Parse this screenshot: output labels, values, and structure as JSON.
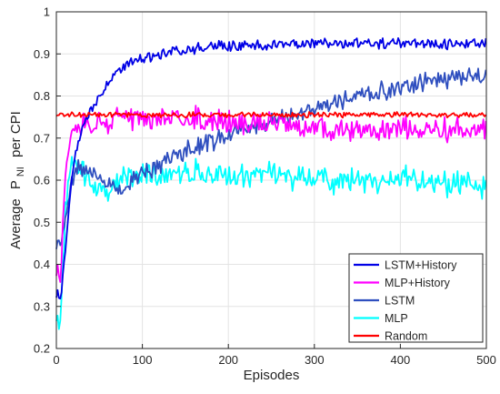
{
  "chart_data": {
    "type": "line",
    "title": "",
    "xlabel": "Episodes",
    "ylabel": {
      "prefix": "Average",
      "main": "P",
      "sub": "NI",
      "suffix": "per CPI"
    },
    "xlim": [
      0,
      500
    ],
    "ylim": [
      0.2,
      1.0
    ],
    "xticks": [
      0,
      100,
      200,
      300,
      400,
      500
    ],
    "yticks": [
      0.2,
      0.3,
      0.4,
      0.5,
      0.6,
      0.7,
      0.8,
      0.9,
      1
    ],
    "grid": true,
    "legend_position": "bottom-right",
    "x": [
      0,
      5,
      10,
      15,
      20,
      25,
      30,
      40,
      50,
      60,
      70,
      80,
      90,
      100,
      125,
      150,
      175,
      200,
      250,
      300,
      350,
      400,
      450,
      500
    ],
    "series": [
      {
        "name": "LSTM+History",
        "color": "#0000e6",
        "values": [
          0.33,
          0.32,
          0.42,
          0.55,
          0.64,
          0.69,
          0.72,
          0.77,
          0.8,
          0.83,
          0.85,
          0.87,
          0.88,
          0.89,
          0.9,
          0.91,
          0.915,
          0.92,
          0.92,
          0.925,
          0.925,
          0.925,
          0.925,
          0.925
        ]
      },
      {
        "name": "MLP+History",
        "color": "#ff00ff",
        "values": [
          0.38,
          0.38,
          0.6,
          0.7,
          0.72,
          0.72,
          0.73,
          0.735,
          0.74,
          0.74,
          0.745,
          0.745,
          0.745,
          0.745,
          0.745,
          0.745,
          0.745,
          0.74,
          0.73,
          0.72,
          0.72,
          0.72,
          0.72,
          0.72
        ]
      },
      {
        "name": "LSTM",
        "color": "#2f4fbf",
        "values": [
          0.45,
          0.44,
          0.5,
          0.58,
          0.61,
          0.63,
          0.63,
          0.62,
          0.61,
          0.59,
          0.57,
          0.58,
          0.6,
          0.62,
          0.64,
          0.67,
          0.69,
          0.71,
          0.74,
          0.77,
          0.8,
          0.82,
          0.84,
          0.85
        ]
      },
      {
        "name": "MLP",
        "color": "#00ffff",
        "values": [
          0.27,
          0.28,
          0.5,
          0.62,
          0.64,
          0.63,
          0.62,
          0.6,
          0.58,
          0.58,
          0.59,
          0.6,
          0.61,
          0.61,
          0.61,
          0.615,
          0.615,
          0.61,
          0.61,
          0.6,
          0.6,
          0.6,
          0.59,
          0.59
        ]
      },
      {
        "name": "Random",
        "color": "#ff0000",
        "values": [
          0.755,
          0.755,
          0.755,
          0.755,
          0.755,
          0.755,
          0.755,
          0.755,
          0.755,
          0.755,
          0.755,
          0.755,
          0.755,
          0.755,
          0.755,
          0.755,
          0.755,
          0.755,
          0.755,
          0.755,
          0.755,
          0.755,
          0.755,
          0.755
        ]
      }
    ]
  }
}
